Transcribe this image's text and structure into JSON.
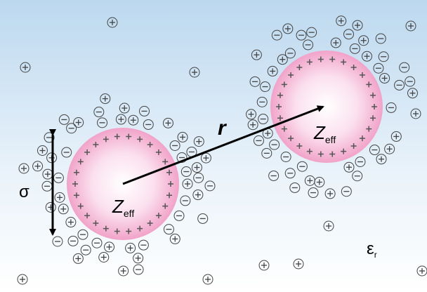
{
  "particles": [
    {
      "label": "Z",
      "subscript": "eff"
    },
    {
      "label": "Z",
      "subscript": "eff"
    }
  ],
  "separation_label": "r",
  "size_label": "σ",
  "medium": {
    "label": "ε",
    "subscript": "r"
  }
}
